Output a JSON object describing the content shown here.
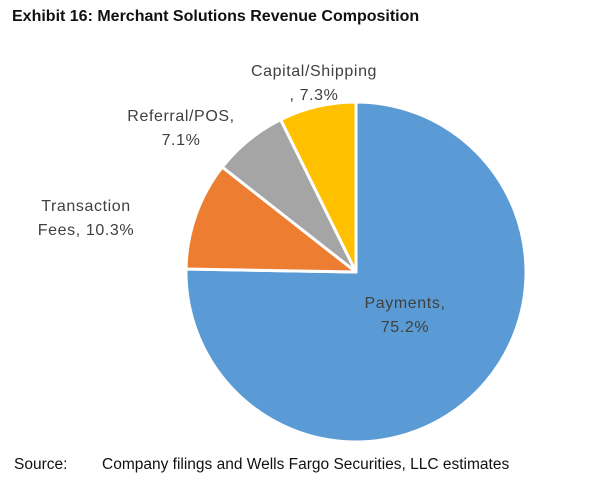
{
  "exhibit": {
    "title": "Exhibit 16:  Merchant Solutions Revenue Composition"
  },
  "chart_data": {
    "type": "pie",
    "title": "Exhibit 16:  Merchant Solutions Revenue Composition",
    "start": "12 o'clock, clockwise",
    "slices": [
      {
        "label": "Payments",
        "value": 75.2,
        "value_label": "75.2%",
        "color": "#5B9BD5",
        "label_lines": [
          "Payments,",
          "75.2%"
        ]
      },
      {
        "label": "Transaction Fees",
        "value": 10.3,
        "value_label": "10.3%",
        "color": "#ED7D31",
        "label_lines": [
          "Transaction",
          "Fees, 10.3%"
        ]
      },
      {
        "label": "Referral/POS",
        "value": 7.1,
        "value_label": "7.1%",
        "color": "#A5A5A5",
        "label_lines": [
          "Referral/POS,",
          "7.1%"
        ]
      },
      {
        "label": "Capital/Shipping",
        "value": 7.3,
        "value_label": "7.3%",
        "color": "#FFC000",
        "label_lines": [
          "Capital/Shipping",
          ", 7.3%"
        ]
      }
    ],
    "slice_border_color": "#ffffff"
  },
  "source": {
    "label": "Source:",
    "text": "Company filings and Wells Fargo Securities, LLC estimates"
  }
}
